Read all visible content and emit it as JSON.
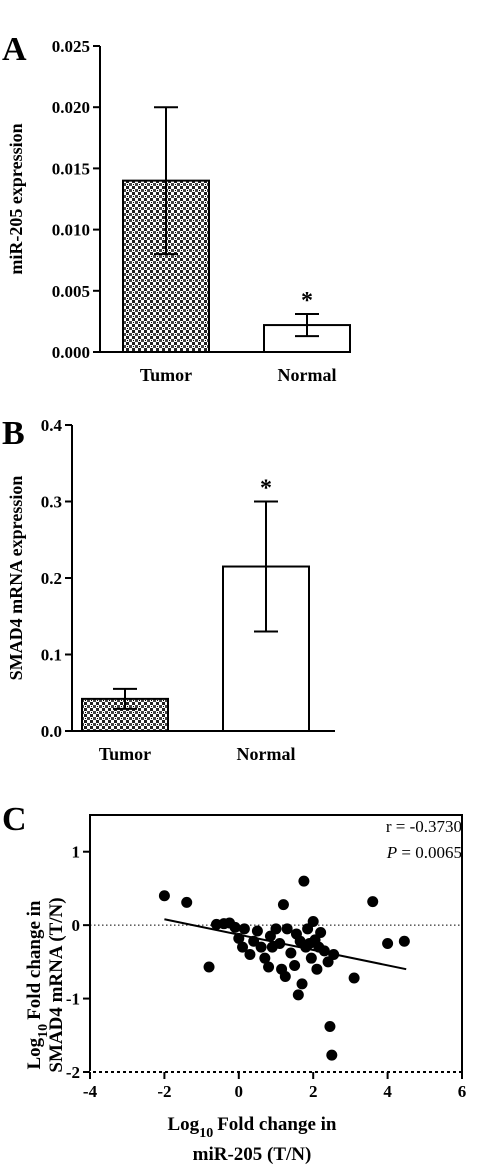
{
  "chart_data": [
    {
      "type": "bar",
      "panel": "A",
      "categories": [
        "Tumor",
        "Normal"
      ],
      "values": [
        0.014,
        0.0022
      ],
      "errors": [
        0.006,
        0.0009
      ],
      "significance": [
        "",
        "*"
      ],
      "ylabel": "miR-205 expression",
      "ylim": [
        0,
        0.025
      ],
      "yticks": [
        "0.000",
        "0.005",
        "0.010",
        "0.015",
        "0.020",
        "0.025"
      ],
      "fills": [
        "pattern",
        "#ffffff"
      ]
    },
    {
      "type": "bar",
      "panel": "B",
      "categories": [
        "Tumor",
        "Normal"
      ],
      "values": [
        0.042,
        0.215
      ],
      "errors": [
        0.013,
        0.085
      ],
      "significance": [
        "",
        "*"
      ],
      "ylabel": "SMAD4 mRNA expression",
      "ylim": [
        0,
        0.4
      ],
      "yticks": [
        "0.0",
        "0.1",
        "0.2",
        "0.3",
        "0.4"
      ],
      "fills": [
        "pattern",
        "#ffffff"
      ]
    },
    {
      "type": "scatter",
      "panel": "C",
      "xlabel_line1": "Log",
      "xlabel_sub": "10",
      "xlabel_line1_rest": "Fold change in",
      "xlabel_line2": "miR-205 (T/N)",
      "ylabel_line1": "Log",
      "ylabel_sub": "10",
      "ylabel_line1_rest": "Fold change in",
      "ylabel_line2": "SMAD4 mRNA (T/N)",
      "xlim": [
        -4,
        6
      ],
      "ylim": [
        -2,
        1.5
      ],
      "xticks": [
        "-4",
        "-2",
        "0",
        "2",
        "4",
        "6"
      ],
      "yticks": [
        "-2",
        "-1",
        "0",
        "1"
      ],
      "stat_r": "r = -0.3730",
      "stat_p_label": "P",
      "stat_p_value": " = 0.0065",
      "regression": {
        "x": [
          -2,
          4.5
        ],
        "y": [
          0.08,
          -0.6
        ]
      },
      "points": [
        [
          -2.0,
          0.4
        ],
        [
          -1.4,
          0.31
        ],
        [
          -0.8,
          -0.57
        ],
        [
          -0.6,
          0.01
        ],
        [
          -0.4,
          0.02
        ],
        [
          -0.25,
          0.03
        ],
        [
          -0.1,
          -0.03
        ],
        [
          0.0,
          -0.18
        ],
        [
          0.1,
          -0.3
        ],
        [
          0.15,
          -0.05
        ],
        [
          0.3,
          -0.4
        ],
        [
          0.4,
          -0.22
        ],
        [
          0.5,
          -0.08
        ],
        [
          0.6,
          -0.3
        ],
        [
          0.7,
          -0.45
        ],
        [
          0.8,
          -0.57
        ],
        [
          0.85,
          -0.15
        ],
        [
          0.9,
          -0.3
        ],
        [
          1.0,
          -0.05
        ],
        [
          1.1,
          -0.25
        ],
        [
          1.15,
          -0.6
        ],
        [
          1.2,
          0.28
        ],
        [
          1.25,
          -0.7
        ],
        [
          1.3,
          -0.05
        ],
        [
          1.4,
          -0.38
        ],
        [
          1.5,
          -0.55
        ],
        [
          1.55,
          -0.12
        ],
        [
          1.6,
          -0.95
        ],
        [
          1.65,
          -0.22
        ],
        [
          1.7,
          -0.8
        ],
        [
          1.75,
          0.6
        ],
        [
          1.8,
          -0.3
        ],
        [
          1.85,
          -0.05
        ],
        [
          1.9,
          -0.25
        ],
        [
          1.95,
          -0.45
        ],
        [
          2.0,
          0.05
        ],
        [
          2.05,
          -0.2
        ],
        [
          2.1,
          -0.6
        ],
        [
          2.15,
          -0.3
        ],
        [
          2.2,
          -0.1
        ],
        [
          2.3,
          -0.35
        ],
        [
          2.4,
          -0.5
        ],
        [
          2.45,
          -1.38
        ],
        [
          2.5,
          -1.77
        ],
        [
          2.55,
          -0.4
        ],
        [
          3.1,
          -0.72
        ],
        [
          3.6,
          0.32
        ],
        [
          4.0,
          -0.25
        ],
        [
          4.45,
          -0.22
        ]
      ]
    }
  ]
}
